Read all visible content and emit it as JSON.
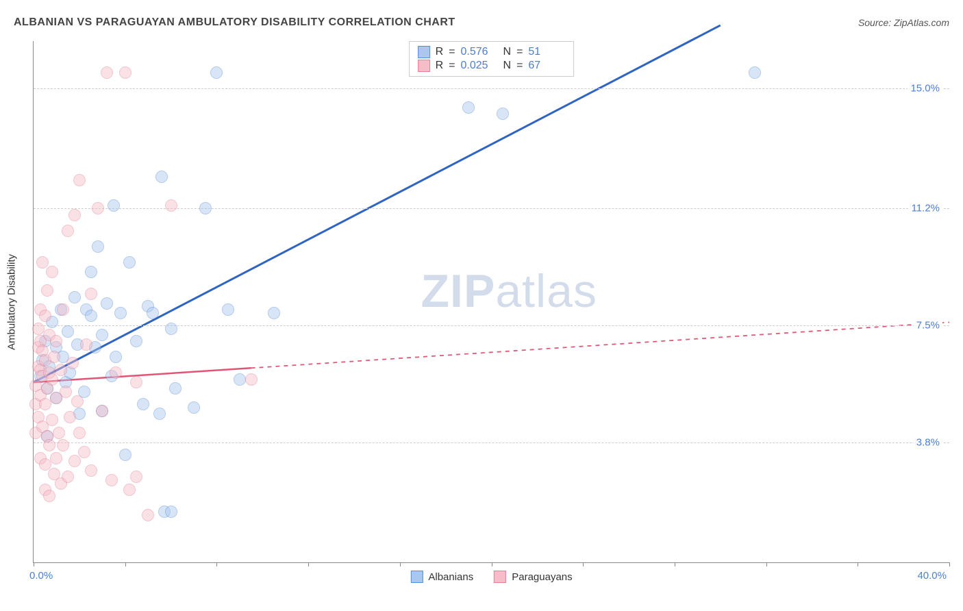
{
  "title": "ALBANIAN VS PARAGUAYAN AMBULATORY DISABILITY CORRELATION CHART",
  "source": "Source: ZipAtlas.com",
  "watermark": {
    "left": "ZIP",
    "right": "atlas"
  },
  "chart": {
    "type": "scatter",
    "y_axis_title": "Ambulatory Disability",
    "background_color": "#ffffff",
    "grid_color": "#cccccc",
    "axis_color": "#888888",
    "xlim": [
      0,
      40
    ],
    "ylim": [
      0,
      16.5
    ],
    "x_tick_step": 4,
    "x_range_labels": {
      "min": "0.0%",
      "max": "40.0%"
    },
    "y_ticks": [
      {
        "v": 3.8,
        "label": "3.8%"
      },
      {
        "v": 7.5,
        "label": "7.5%"
      },
      {
        "v": 11.2,
        "label": "11.2%"
      },
      {
        "v": 15.0,
        "label": "15.0%"
      }
    ],
    "marker_radius": 9,
    "marker_opacity": 0.45,
    "series": [
      {
        "id": "albanians",
        "label": "Albanians",
        "fill": "#a9c7ef",
        "stroke": "#5a8cd6",
        "line_color": "#2f64c0",
        "line_width": 3,
        "line_dash": "none",
        "regression": {
          "x1": 0,
          "y1": 5.7,
          "x2": 30,
          "y2": 17.0
        },
        "solid_until_x": 30,
        "R": "0.576",
        "N": "51",
        "points": [
          [
            0.3,
            5.9
          ],
          [
            0.4,
            6.4
          ],
          [
            0.5,
            7.0
          ],
          [
            0.6,
            4.0
          ],
          [
            0.6,
            5.5
          ],
          [
            0.7,
            6.2
          ],
          [
            0.8,
            7.6
          ],
          [
            1.0,
            6.8
          ],
          [
            1.0,
            5.2
          ],
          [
            1.2,
            8.0
          ],
          [
            1.3,
            6.5
          ],
          [
            1.4,
            5.7
          ],
          [
            1.5,
            7.3
          ],
          [
            1.6,
            6.0
          ],
          [
            1.8,
            8.4
          ],
          [
            1.9,
            6.9
          ],
          [
            2.0,
            4.7
          ],
          [
            2.2,
            5.4
          ],
          [
            2.3,
            8.0
          ],
          [
            2.5,
            7.8
          ],
          [
            2.5,
            9.2
          ],
          [
            2.7,
            6.8
          ],
          [
            2.8,
            10.0
          ],
          [
            3.0,
            4.8
          ],
          [
            3.0,
            7.2
          ],
          [
            3.2,
            8.2
          ],
          [
            3.4,
            5.9
          ],
          [
            3.5,
            11.3
          ],
          [
            3.6,
            6.5
          ],
          [
            3.8,
            7.9
          ],
          [
            4.0,
            3.4
          ],
          [
            4.2,
            9.5
          ],
          [
            4.5,
            7.0
          ],
          [
            4.8,
            5.0
          ],
          [
            5.0,
            8.1
          ],
          [
            5.2,
            7.9
          ],
          [
            5.5,
            4.7
          ],
          [
            5.6,
            12.2
          ],
          [
            5.7,
            1.6
          ],
          [
            6.0,
            1.6
          ],
          [
            6.0,
            7.4
          ],
          [
            6.2,
            5.5
          ],
          [
            7.0,
            4.9
          ],
          [
            7.5,
            11.2
          ],
          [
            8.0,
            15.5
          ],
          [
            8.5,
            8.0
          ],
          [
            9.0,
            5.8
          ],
          [
            10.5,
            7.9
          ],
          [
            19.0,
            14.4
          ],
          [
            20.5,
            14.2
          ],
          [
            31.5,
            15.5
          ]
        ]
      },
      {
        "id": "paraguayans",
        "label": "Paraguayans",
        "fill": "#f4bdc8",
        "stroke": "#e47f95",
        "line_color": "#e05575",
        "line_width": 2.5,
        "line_dash": "dashed",
        "regression": {
          "x1": 0,
          "y1": 5.7,
          "x2": 40,
          "y2": 7.6
        },
        "solid_until_x": 9.5,
        "R": "0.025",
        "N": "67",
        "points": [
          [
            0.1,
            4.1
          ],
          [
            0.1,
            5.0
          ],
          [
            0.1,
            5.6
          ],
          [
            0.2,
            6.2
          ],
          [
            0.2,
            6.8
          ],
          [
            0.2,
            4.6
          ],
          [
            0.2,
            7.4
          ],
          [
            0.3,
            3.3
          ],
          [
            0.3,
            5.3
          ],
          [
            0.3,
            6.1
          ],
          [
            0.3,
            7.0
          ],
          [
            0.3,
            8.0
          ],
          [
            0.4,
            4.3
          ],
          [
            0.4,
            5.9
          ],
          [
            0.4,
            6.7
          ],
          [
            0.4,
            9.5
          ],
          [
            0.5,
            2.3
          ],
          [
            0.5,
            3.1
          ],
          [
            0.5,
            5.0
          ],
          [
            0.5,
            6.4
          ],
          [
            0.5,
            7.8
          ],
          [
            0.6,
            4.0
          ],
          [
            0.6,
            5.5
          ],
          [
            0.6,
            8.6
          ],
          [
            0.7,
            2.1
          ],
          [
            0.7,
            3.7
          ],
          [
            0.7,
            6.0
          ],
          [
            0.7,
            7.2
          ],
          [
            0.8,
            4.5
          ],
          [
            0.8,
            5.8
          ],
          [
            0.8,
            9.2
          ],
          [
            0.9,
            2.8
          ],
          [
            0.9,
            6.5
          ],
          [
            1.0,
            3.3
          ],
          [
            1.0,
            5.2
          ],
          [
            1.0,
            7.0
          ],
          [
            1.1,
            4.1
          ],
          [
            1.2,
            2.5
          ],
          [
            1.2,
            6.1
          ],
          [
            1.3,
            3.7
          ],
          [
            1.3,
            8.0
          ],
          [
            1.4,
            5.4
          ],
          [
            1.5,
            2.7
          ],
          [
            1.5,
            10.5
          ],
          [
            1.6,
            4.6
          ],
          [
            1.7,
            6.3
          ],
          [
            1.8,
            3.2
          ],
          [
            1.8,
            11.0
          ],
          [
            1.9,
            5.1
          ],
          [
            2.0,
            4.1
          ],
          [
            2.0,
            12.1
          ],
          [
            2.2,
            3.5
          ],
          [
            2.3,
            6.9
          ],
          [
            2.5,
            2.9
          ],
          [
            2.5,
            8.5
          ],
          [
            2.8,
            11.2
          ],
          [
            3.0,
            4.8
          ],
          [
            3.2,
            15.5
          ],
          [
            3.4,
            2.6
          ],
          [
            3.6,
            6.0
          ],
          [
            4.0,
            15.5
          ],
          [
            4.2,
            2.3
          ],
          [
            4.5,
            5.7
          ],
          [
            4.5,
            2.7
          ],
          [
            5.0,
            1.5
          ],
          [
            6.0,
            11.3
          ],
          [
            9.5,
            5.8
          ]
        ]
      }
    ],
    "stats_legend_labels": {
      "R": "R",
      "N": "N",
      "eq": "="
    },
    "bottom_legend_labels": [
      "Albanians",
      "Paraguayans"
    ]
  }
}
